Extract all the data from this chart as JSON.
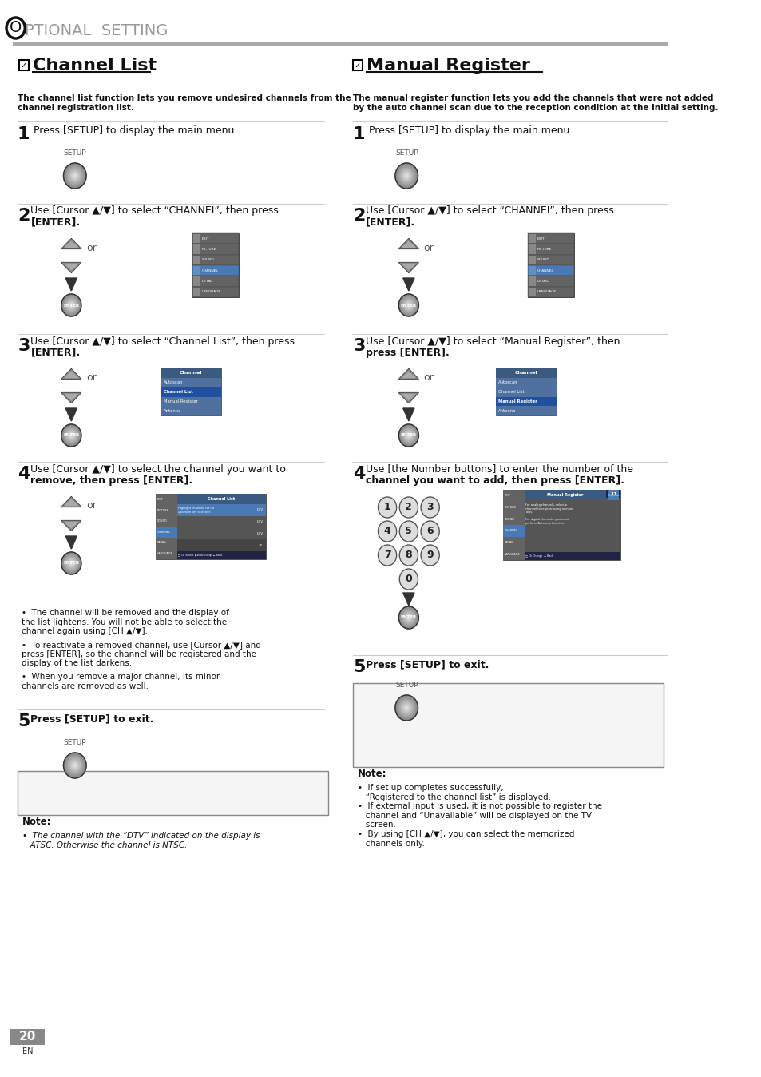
{
  "page_num": "20",
  "page_lang": "EN",
  "header_title": "PTIONAL  SETTING",
  "bg_color": "#ffffff",
  "header_line_color": "#aaaaaa",
  "left_section_title": "Channel List",
  "right_section_title": "Manual Register",
  "left_subtitle": "The channel list function lets you remove undesired channels from the\nchannel registration list.",
  "right_subtitle": "The manual register function lets you add the channels that were not added\nby the auto channel scan due to the reception condition at the initial setting.",
  "step1_left": "Press [SETUP] to display the main menu.",
  "step1_right": "Press [SETUP] to display the main menu.",
  "step2_left_1": "Use [Cursor ▲/▼] to select “CHANNEL”, then press",
  "step2_left_2": "[ENTER].",
  "step2_right_1": "Use [Cursor ▲/▼] to select “CHANNEL”, then press",
  "step2_right_2": "[ENTER].",
  "step3_left_1": "Use [Cursor ▲/▼] to select “Channel List”, then press",
  "step3_left_2": "[ENTER].",
  "step3_right_1": "Use [Cursor ▲/▼] to select “Manual Register”, then",
  "step3_right_2": "press [ENTER].",
  "step4_left_1": "Use [Cursor ▲/▼] to select the channel you want to",
  "step4_left_2": "remove, then press [ENTER].",
  "step4_right_1": "Use [the Number buttons] to enter the number of the",
  "step4_right_2": "channel you want to add, then press [ENTER].",
  "step5_left": "Press [SETUP] to exit.",
  "step5_right": "Press [SETUP] to exit.",
  "bullet1": "The channel will be removed and the display of\nthe list lightens. You will not be able to select the\nchannel again using [CH ▲/▼].",
  "bullet2": "To reactivate a removed channel, use [Cursor ▲/▼] and\npress [ENTER], so the channel will be registered and the\ndisplay of the list darkens.",
  "bullet3": "When you remove a major channel, its minor\nchannels are removed as well.",
  "note_left_title": "Note:",
  "note_left_text": "•  The channel with the “DTV” indicated on the display is\n   ATSC. Otherwise the channel is NTSC.",
  "note_right_title": "Note:",
  "note_right_text": "•  If set up completes successfully,\n   “Registered to the channel list” is displayed.\n•  If external input is used, it is not possible to register the\n   channel and “Unavailable” will be displayed on the TV\n   screen.\n•  By using [CH ▲/▼], you can select the memorized\n   channels only.",
  "menu_items": [
    "EXIT",
    "PICTURE",
    "SOUND",
    "CHANNEL",
    "DETAIL",
    "LANGUAGE"
  ],
  "channel_menu_items": [
    "Autoscan",
    "Channel List",
    "Manual Register",
    "Antenna"
  ]
}
